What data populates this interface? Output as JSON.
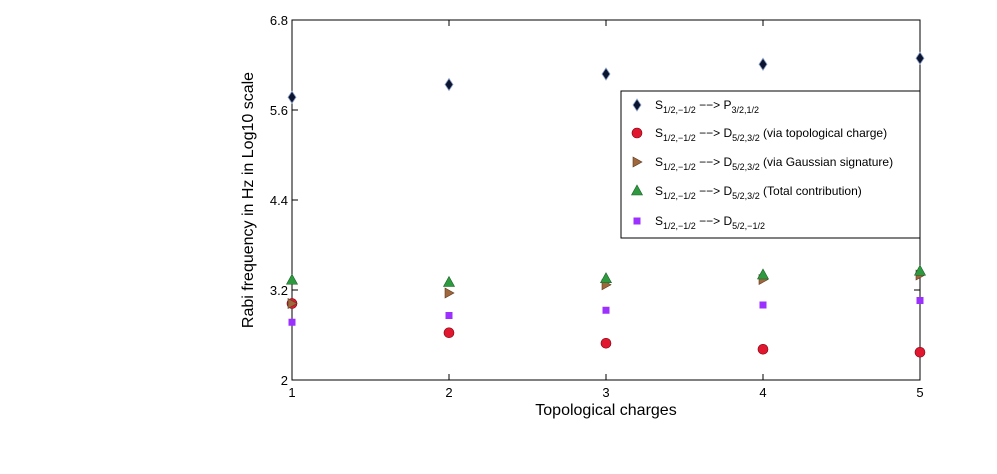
{
  "chart_data": {
    "type": "scatter",
    "title": "",
    "xlabel": "Topological charges",
    "ylabel": "Rabi frequency in Hz in Log10 scale",
    "x": [
      1,
      2,
      3,
      4,
      5
    ],
    "xlim": [
      1,
      5
    ],
    "ylim": [
      2,
      6.8
    ],
    "xticks": [
      "1",
      "2",
      "3",
      "4",
      "5"
    ],
    "yticks": [
      "2",
      "3.2",
      "4.4",
      "5.6",
      "6.8"
    ],
    "grid": false,
    "legend_position": "top-right",
    "series": [
      {
        "name": "S_{1/2,−1/2} −−> P_{3/2,1/2}",
        "legend": {
          "main": "S",
          "sub1": "1/2,−1/2",
          "arrow": " −−> ",
          "main2": "P",
          "sub2": "3/2,1/2",
          "suffix": ""
        },
        "marker": "diamond",
        "color": "#0b1530",
        "values": [
          5.77,
          5.94,
          6.08,
          6.21,
          6.29
        ]
      },
      {
        "name": "S_{1/2,−1/2} −−> D_{5/2,3/2} (via topological charge)",
        "legend": {
          "main": "S",
          "sub1": "1/2,−1/2",
          "arrow": " −−> ",
          "main2": "D",
          "sub2": "5/2,3/2",
          "suffix": " (via topological charge)"
        },
        "marker": "circle",
        "color": "#e0172e",
        "values": [
          3.02,
          2.63,
          2.49,
          2.41,
          2.37
        ]
      },
      {
        "name": "S_{1/2,−1/2} −−> D_{5/2,3/2} (via Gaussian signature)",
        "legend": {
          "main": "S",
          "sub1": "1/2,−1/2",
          "arrow": " −−> ",
          "main2": "D",
          "sub2": "5/2,3/2",
          "suffix": " (via Gaussian signature)"
        },
        "marker": "triangle-right",
        "color": "#a0663c",
        "values": [
          3.02,
          3.16,
          3.27,
          3.34,
          3.4
        ]
      },
      {
        "name": "S_{1/2,−1/2} −−> D_{5/2,3/2} (Total contribution)",
        "legend": {
          "main": "S",
          "sub1": "1/2,−1/2",
          "arrow": " −−> ",
          "main2": "D",
          "sub2": "5/2,3/2",
          "suffix": " (Total contribution)"
        },
        "marker": "triangle-up",
        "color": "#2e9a3f",
        "values": [
          3.33,
          3.3,
          3.35,
          3.4,
          3.45
        ]
      },
      {
        "name": "S_{1/2,−1/2} −−> D_{5/2,−1/2}",
        "legend": {
          "main": "S",
          "sub1": "1/2,−1/2",
          "arrow": " −−> ",
          "main2": "D",
          "sub2": "5/2,−1/2",
          "suffix": ""
        },
        "marker": "square",
        "color": "#9b30ff",
        "values": [
          2.77,
          2.86,
          2.93,
          3.0,
          3.06
        ]
      }
    ]
  }
}
